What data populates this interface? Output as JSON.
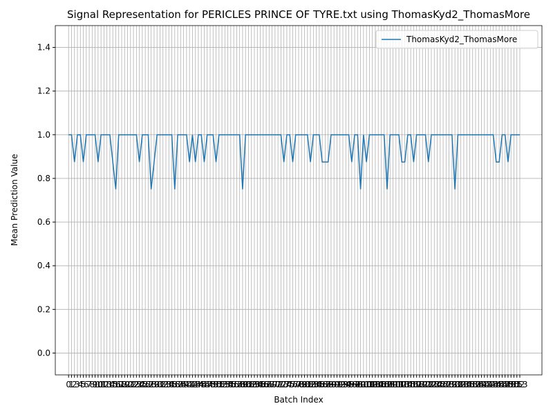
{
  "chart_data": {
    "type": "line",
    "title": "Signal Representation for PERICLES PRINCE OF TYRE.txt using ThomasKyd2_ThomasMore",
    "xlabel": "Batch Index",
    "ylabel": "Mean Prediction Value",
    "x": [
      0,
      1,
      2,
      3,
      4,
      5,
      6,
      7,
      8,
      9,
      10,
      11,
      12,
      13,
      14,
      15,
      16,
      17,
      18,
      19,
      20,
      21,
      22,
      23,
      24,
      25,
      26,
      27,
      28,
      29,
      30,
      31,
      32,
      33,
      34,
      35,
      36,
      37,
      38,
      39,
      40,
      41,
      42,
      43,
      44,
      45,
      46,
      47,
      48,
      49,
      50,
      51,
      52,
      53,
      54,
      55,
      56,
      57,
      58,
      59,
      60,
      61,
      62,
      63,
      64,
      65,
      66,
      67,
      68,
      69,
      70,
      71,
      72,
      73,
      74,
      75,
      76,
      77,
      78,
      79,
      80,
      81,
      82,
      83,
      84,
      85,
      86,
      87,
      88,
      89,
      90,
      91,
      92,
      93,
      94,
      95,
      96,
      97,
      98,
      99,
      100,
      101,
      102,
      103,
      104,
      105,
      106,
      107,
      108,
      109,
      110,
      111,
      112,
      113,
      114,
      115,
      116,
      117,
      118,
      119,
      120,
      121,
      122,
      123,
      124,
      125,
      126,
      127,
      128,
      129,
      130,
      131,
      132,
      133,
      134,
      135,
      136,
      137,
      138,
      139,
      140,
      141,
      142,
      143,
      144,
      145,
      146,
      147,
      148,
      149,
      150,
      151,
      152,
      153
    ],
    "series": [
      {
        "name": "ThomasKyd2_ThomasMore",
        "color": "#1f77b4",
        "values": [
          1,
          1,
          0.875,
          1,
          1,
          0.875,
          1,
          1,
          1,
          1,
          0.875,
          1,
          1,
          1,
          1,
          0.875,
          0.75,
          1,
          1,
          1,
          1,
          1,
          1,
          1,
          0.875,
          1,
          1,
          1,
          0.75,
          0.875,
          1,
          1,
          1,
          1,
          1,
          1,
          0.75,
          1,
          1,
          1,
          1,
          0.875,
          1,
          0.875,
          1,
          1,
          0.875,
          1,
          1,
          1,
          0.875,
          1,
          1,
          1,
          1,
          1,
          1,
          1,
          1,
          0.75,
          1,
          1,
          1,
          1,
          1,
          1,
          1,
          1,
          1,
          1,
          1,
          1,
          1,
          0.875,
          1,
          1,
          0.875,
          1,
          1,
          1,
          1,
          1,
          0.875,
          1,
          1,
          1,
          0.875,
          0.875,
          0.875,
          1,
          1,
          1,
          1,
          1,
          1,
          1,
          0.875,
          1,
          1,
          0.75,
          1,
          0.875,
          1,
          1,
          1,
          1,
          1,
          1,
          0.75,
          1,
          1,
          1,
          1,
          0.875,
          0.875,
          1,
          1,
          0.875,
          1,
          1,
          1,
          1,
          0.875,
          1,
          1,
          1,
          1,
          1,
          1,
          1,
          1,
          0.75,
          1,
          1,
          1,
          1,
          1,
          1,
          1,
          1,
          1,
          1,
          1,
          1,
          1,
          0.875,
          0.875,
          1,
          1,
          0.875,
          1,
          1,
          1,
          1
        ]
      }
    ],
    "xlim": [
      -4.5,
      160.5
    ],
    "xticks": [
      0,
      1,
      2,
      3,
      4,
      5,
      6,
      7,
      8,
      9,
      10,
      11,
      12,
      13,
      14,
      15,
      16,
      17,
      18,
      19,
      20,
      21,
      22,
      23,
      24,
      25,
      26,
      27,
      28,
      29,
      30,
      31,
      32,
      33,
      34,
      35,
      36,
      37,
      38,
      39,
      40,
      41,
      42,
      43,
      44,
      45,
      46,
      47,
      48,
      49,
      50,
      51,
      52,
      53,
      54,
      55,
      56,
      57,
      58,
      59,
      60,
      61,
      62,
      63,
      64,
      65,
      66,
      67,
      68,
      69,
      70,
      71,
      72,
      73,
      74,
      75,
      76,
      77,
      78,
      79,
      80,
      81,
      82,
      83,
      84,
      85,
      86,
      87,
      88,
      89,
      90,
      91,
      92,
      93,
      94,
      95,
      96,
      97,
      98,
      99,
      100,
      101,
      102,
      103,
      104,
      105,
      106,
      107,
      108,
      109,
      110,
      111,
      112,
      113,
      114,
      115,
      116,
      117,
      118,
      119,
      120,
      121,
      122,
      123,
      124,
      125,
      126,
      127,
      128,
      129,
      130,
      131,
      132,
      133,
      134,
      135,
      136,
      137,
      138,
      139,
      140,
      141,
      142,
      143,
      144,
      145,
      146,
      147,
      148,
      149,
      150,
      151,
      152,
      153
    ],
    "ylim": [
      -0.1,
      1.5
    ],
    "yticks": [
      {
        "value": 0,
        "label": "0.0"
      },
      {
        "value": 0.2,
        "label": "0.2"
      },
      {
        "value": 0.4,
        "label": "0.4"
      },
      {
        "value": 0.6,
        "label": "0.6"
      },
      {
        "value": 0.8,
        "label": "0.8"
      },
      {
        "value": 1,
        "label": "1.0"
      },
      {
        "value": 1.2,
        "label": "1.2"
      },
      {
        "value": 1.4,
        "label": "1.4"
      }
    ],
    "grid": true,
    "legend": "upper right"
  }
}
